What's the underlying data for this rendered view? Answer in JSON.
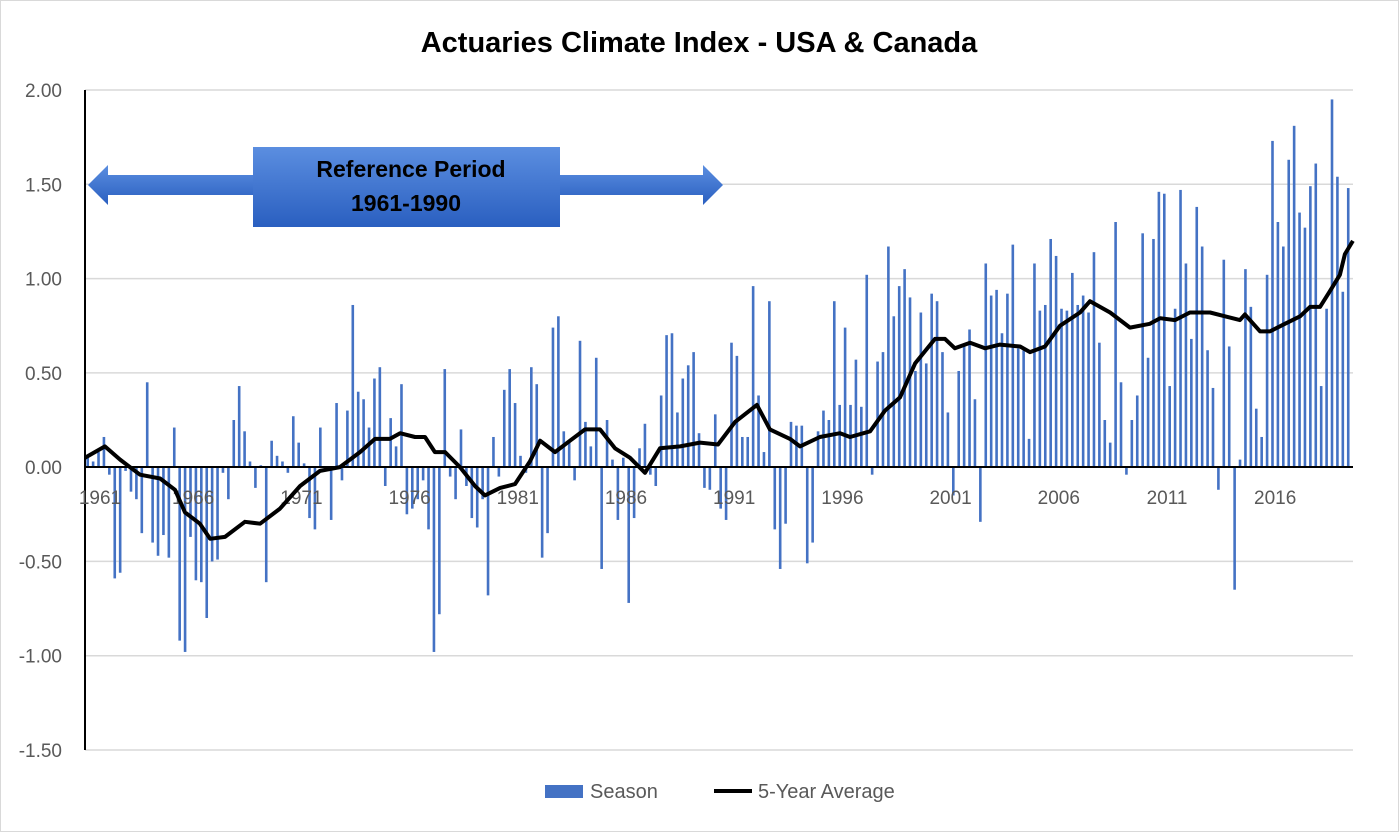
{
  "chart_data": {
    "type": "bar",
    "title": "Actuaries Climate Index - USA & Canada",
    "xlabel": "",
    "ylabel": "",
    "ylim": [
      -1.5,
      2.0
    ],
    "yticks": [
      "2.00",
      "1.50",
      "1.00",
      "0.50",
      "0.00",
      "-0.50",
      "-1.00",
      "-1.50"
    ],
    "xticks": [
      "1961",
      "1966",
      "1971",
      "1976",
      "1981",
      "1986",
      "1991",
      "1996",
      "2001",
      "2006",
      "2011",
      "2016"
    ],
    "grid": true,
    "legend_position": "bottom",
    "colors": {
      "bars": "#4472c4",
      "line": "#000000",
      "annotation": "#3a6fd0"
    },
    "annotation": {
      "line1": "Reference Period",
      "line2": "1961-1990",
      "from_year": 1961,
      "to_year": 1990
    },
    "series": [
      {
        "name": "Season",
        "type": "bar",
        "start_year": 1961,
        "values": [
          0.05,
          0.03,
          0.08,
          0.16,
          -0.04,
          -0.59,
          -0.56,
          -0.02,
          -0.13,
          -0.17,
          -0.35,
          0.45,
          -0.4,
          -0.47,
          -0.36,
          -0.48,
          0.21,
          -0.92,
          -0.98,
          -0.37,
          -0.6,
          -0.61,
          -0.8,
          -0.5,
          -0.49,
          -0.03,
          -0.17,
          0.25,
          0.43,
          0.19,
          0.03,
          -0.11,
          0.01,
          -0.61,
          0.14,
          0.06,
          0.03,
          -0.03,
          0.27,
          0.13,
          0.02,
          -0.27,
          -0.33,
          0.21,
          -0.02,
          -0.28,
          0.34,
          -0.07,
          0.3,
          0.86,
          0.4,
          0.36,
          0.21,
          0.47,
          0.53,
          -0.1,
          0.26,
          0.11,
          0.44,
          -0.25,
          -0.22,
          -0.17,
          -0.07,
          -0.33,
          -0.98,
          -0.78,
          0.52,
          -0.05,
          -0.17,
          0.2,
          -0.1,
          -0.27,
          -0.32,
          -0.17,
          -0.68,
          0.16,
          -0.05,
          0.41,
          0.52,
          0.34,
          0.06,
          -0.03,
          0.53,
          0.44,
          -0.48,
          -0.35,
          0.74,
          0.8,
          0.19,
          0.13,
          -0.07,
          0.67,
          0.24,
          0.11,
          0.58,
          -0.54,
          0.25,
          0.04,
          -0.28,
          0.05,
          -0.72,
          -0.27,
          0.1,
          0.23,
          -0.04,
          -0.1,
          0.38,
          0.7,
          0.71,
          0.29,
          0.47,
          0.54,
          0.61,
          0.18,
          -0.11,
          -0.12,
          0.28,
          -0.22,
          -0.28,
          0.66,
          0.59,
          0.16,
          0.16,
          0.96,
          0.38,
          0.08,
          0.88,
          -0.33,
          -0.54,
          -0.3,
          0.24,
          0.22,
          0.22,
          -0.51,
          -0.4,
          0.19,
          0.3,
          0.25,
          0.88,
          0.33,
          0.74,
          0.33,
          0.57,
          0.32,
          1.02,
          -0.04,
          0.56,
          0.61,
          1.17,
          0.8,
          0.96,
          1.05,
          0.9,
          0.51,
          0.82,
          0.55,
          0.92,
          0.88,
          0.61,
          0.29,
          -0.15,
          0.51,
          0.64,
          0.73,
          0.36,
          -0.29,
          1.08,
          0.91,
          0.94,
          0.71,
          0.92,
          1.18,
          0.63,
          0.62,
          0.15,
          1.08,
          0.83,
          0.86,
          1.21,
          1.12,
          0.84,
          0.83,
          1.03,
          0.86,
          0.91,
          0.82,
          1.14,
          0.66,
          0.25,
          0.13,
          1.3,
          0.45,
          -0.04,
          0.25,
          0.38,
          1.24,
          0.58,
          1.21,
          1.46,
          1.45,
          0.43,
          0.84,
          1.47,
          1.08,
          0.68,
          1.38,
          1.17,
          0.62,
          0.42,
          -0.12,
          1.1,
          0.64,
          -0.65,
          0.04,
          1.05,
          0.85,
          0.31,
          0.16,
          1.02,
          1.73,
          1.3,
          1.17,
          1.63,
          1.81,
          1.35,
          1.27,
          1.49,
          1.61,
          0.43,
          0.84,
          1.95,
          1.54,
          0.93,
          1.48
        ]
      },
      {
        "name": "5-Year Average",
        "type": "line",
        "points": [
          [
            1961.0,
            0.05
          ],
          [
            1961.92,
            0.11
          ],
          [
            1962.62,
            0.04
          ],
          [
            1963.54,
            -0.04
          ],
          [
            1964.47,
            -0.06
          ],
          [
            1965.16,
            -0.12
          ],
          [
            1965.62,
            -0.24
          ],
          [
            1966.31,
            -0.3
          ],
          [
            1966.78,
            -0.38
          ],
          [
            1967.47,
            -0.37
          ],
          [
            1968.39,
            -0.29
          ],
          [
            1969.09,
            -0.3
          ],
          [
            1970.01,
            -0.22
          ],
          [
            1970.94,
            -0.1
          ],
          [
            1971.86,
            -0.02
          ],
          [
            1972.78,
            0.0
          ],
          [
            1973.71,
            0.08
          ],
          [
            1974.4,
            0.15
          ],
          [
            1975.09,
            0.15
          ],
          [
            1975.56,
            0.18
          ],
          [
            1976.25,
            0.16
          ],
          [
            1976.71,
            0.16
          ],
          [
            1977.17,
            0.08
          ],
          [
            1977.64,
            0.08
          ],
          [
            1978.33,
            0.0
          ],
          [
            1979.02,
            -0.1
          ],
          [
            1979.48,
            -0.15
          ],
          [
            1980.18,
            -0.11
          ],
          [
            1980.87,
            -0.09
          ],
          [
            1981.56,
            0.03
          ],
          [
            1982.03,
            0.14
          ],
          [
            1982.72,
            0.08
          ],
          [
            1983.41,
            0.14
          ],
          [
            1984.11,
            0.2
          ],
          [
            1984.8,
            0.2
          ],
          [
            1985.49,
            0.1
          ],
          [
            1986.18,
            0.05
          ],
          [
            1986.88,
            -0.03
          ],
          [
            1987.57,
            0.1
          ],
          [
            1988.5,
            0.11
          ],
          [
            1989.42,
            0.13
          ],
          [
            1990.25,
            0.12
          ],
          [
            1991.04,
            0.24
          ],
          [
            1992.05,
            0.33
          ],
          [
            1992.65,
            0.2
          ],
          [
            1993.58,
            0.15
          ],
          [
            1994.04,
            0.11
          ],
          [
            1994.96,
            0.16
          ],
          [
            1995.89,
            0.18
          ],
          [
            1996.35,
            0.16
          ],
          [
            1997.28,
            0.19
          ],
          [
            1997.97,
            0.3
          ],
          [
            1998.66,
            0.37
          ],
          [
            1999.36,
            0.55
          ],
          [
            2000.28,
            0.68
          ],
          [
            2000.74,
            0.68
          ],
          [
            2001.2,
            0.63
          ],
          [
            2001.9,
            0.66
          ],
          [
            2002.59,
            0.63
          ],
          [
            2003.28,
            0.65
          ],
          [
            2004.21,
            0.64
          ],
          [
            2004.67,
            0.61
          ],
          [
            2005.36,
            0.64
          ],
          [
            2006.06,
            0.75
          ],
          [
            2006.98,
            0.82
          ],
          [
            2007.44,
            0.88
          ],
          [
            2008.37,
            0.82
          ],
          [
            2009.29,
            0.74
          ],
          [
            2010.21,
            0.76
          ],
          [
            2010.68,
            0.79
          ],
          [
            2011.37,
            0.78
          ],
          [
            2012.06,
            0.82
          ],
          [
            2012.99,
            0.82
          ],
          [
            2013.68,
            0.8
          ],
          [
            2014.37,
            0.78
          ],
          [
            2014.6,
            0.81
          ],
          [
            2015.3,
            0.72
          ],
          [
            2015.76,
            0.72
          ],
          [
            2016.45,
            0.76
          ],
          [
            2017.15,
            0.8
          ],
          [
            2017.61,
            0.85
          ],
          [
            2018.07,
            0.85
          ],
          [
            2018.51,
            0.93
          ],
          [
            2018.99,
            1.02
          ],
          [
            2019.22,
            1.13
          ],
          [
            2019.59,
            1.2
          ]
        ]
      }
    ]
  }
}
